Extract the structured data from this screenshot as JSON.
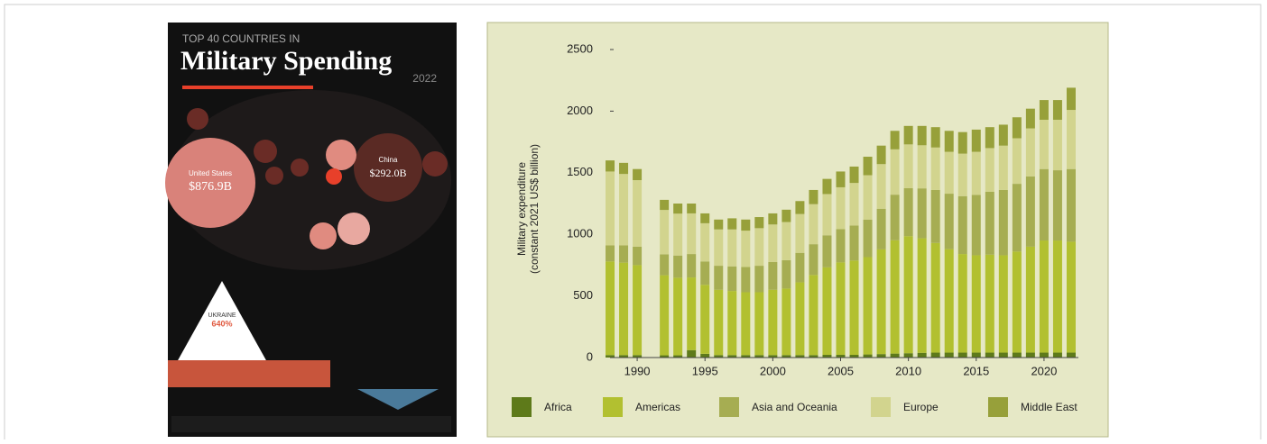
{
  "infographic": {
    "kicker": "TOP 40 COUNTRIES IN",
    "title": "Military Spending",
    "year": "2022",
    "bubbles": [
      {
        "name": "United States",
        "amount": "$876.9B"
      },
      {
        "name": "China",
        "amount": "$292.0B"
      }
    ],
    "callout": {
      "name": "UKRAINE",
      "amount": "640%"
    }
  },
  "chart_data": {
    "type": "stacked-bar",
    "y_label": "Military expenditure\n(constant 2021 US$ billion)",
    "x": [
      1988,
      1989,
      1990,
      1991,
      1992,
      1993,
      1994,
      1995,
      1996,
      1997,
      1998,
      1999,
      2000,
      2001,
      2002,
      2003,
      2004,
      2005,
      2006,
      2007,
      2008,
      2009,
      2010,
      2011,
      2012,
      2013,
      2014,
      2015,
      2016,
      2017,
      2018,
      2019,
      2020,
      2021,
      2022
    ],
    "xlim": [
      1987,
      2023
    ],
    "xticks": [
      1990,
      1995,
      2000,
      2005,
      2010,
      2015,
      2020
    ],
    "ylim": [
      0,
      2500
    ],
    "yticks": [
      0,
      500,
      1000,
      1500,
      2000,
      2500
    ],
    "series": [
      {
        "name": "Africa",
        "color": "#5e7a1a",
        "values": [
          20,
          20,
          20,
          null,
          18,
          18,
          60,
          30,
          20,
          20,
          20,
          20,
          20,
          20,
          20,
          20,
          22,
          22,
          22,
          25,
          28,
          32,
          35,
          38,
          40,
          40,
          40,
          40,
          40,
          40,
          40,
          40,
          40,
          40,
          40
        ]
      },
      {
        "name": "Americas",
        "color": "#b2c030",
        "values": [
          760,
          750,
          730,
          null,
          650,
          630,
          590,
          560,
          530,
          520,
          510,
          510,
          530,
          540,
          590,
          650,
          710,
          750,
          765,
          790,
          850,
          920,
          950,
          930,
          890,
          840,
          800,
          790,
          795,
          790,
          820,
          860,
          910,
          910,
          900
        ]
      },
      {
        "name": "Asia and Oceania",
        "color": "#a6ad52",
        "values": [
          130,
          140,
          150,
          null,
          170,
          180,
          190,
          190,
          195,
          200,
          205,
          215,
          225,
          230,
          240,
          250,
          260,
          270,
          285,
          305,
          330,
          370,
          390,
          405,
          430,
          450,
          470,
          490,
          510,
          530,
          550,
          570,
          580,
          570,
          590
        ]
      },
      {
        "name": "Europe",
        "color": "#d2d48e",
        "values": [
          600,
          580,
          540,
          null,
          360,
          340,
          330,
          310,
          295,
          300,
          295,
          305,
          305,
          310,
          315,
          325,
          335,
          340,
          345,
          360,
          362,
          368,
          355,
          350,
          345,
          340,
          345,
          350,
          355,
          360,
          370,
          390,
          400,
          410,
          480
        ]
      },
      {
        "name": "Middle East",
        "color": "#97a03a",
        "values": [
          90,
          90,
          90,
          null,
          82,
          82,
          80,
          80,
          80,
          90,
          90,
          90,
          90,
          100,
          105,
          115,
          123,
          128,
          133,
          150,
          150,
          150,
          150,
          157,
          165,
          170,
          175,
          180,
          170,
          170,
          170,
          160,
          160,
          160,
          180
        ]
      }
    ]
  }
}
